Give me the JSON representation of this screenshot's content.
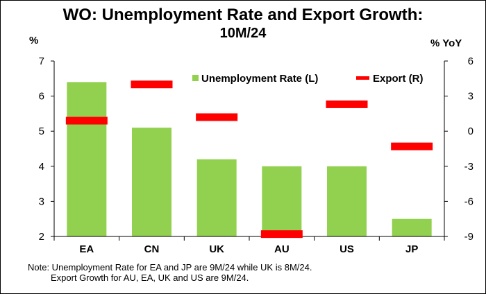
{
  "chart_data": {
    "type": "bar",
    "title": "WO: Unemployment Rate and Export Growth:",
    "subtitle": "10M/24",
    "categories": [
      "EA",
      "CN",
      "UK",
      "AU",
      "US",
      "JP"
    ],
    "series": [
      {
        "name": "Unemployment Rate (L)",
        "type": "bar",
        "axis": "left",
        "color": "#92D050",
        "values": [
          6.4,
          5.1,
          4.2,
          4.0,
          4.0,
          2.5
        ]
      },
      {
        "name": "Export (R)",
        "type": "marker",
        "axis": "right",
        "color": "#FF0000",
        "values": [
          0.9,
          4.0,
          1.2,
          -8.8,
          2.3,
          -1.3
        ]
      }
    ],
    "ylabel_left": "%",
    "ylabel_right": "% YoY",
    "ylim_left": [
      2,
      7
    ],
    "ylim_right": [
      -9,
      6
    ],
    "yticks_left": [
      "2",
      "3",
      "4",
      "5",
      "6",
      "7"
    ],
    "yticks_right": [
      "-9",
      "-6",
      "-3",
      "0",
      "3",
      "6"
    ],
    "legend_position": "top-right",
    "grid": false
  },
  "note": {
    "line1": "Note: Unemployment Rate for EA and JP are 9M/24 while UK is 8M/24.",
    "line2": "Export Growth for AU, EA, UK and US are 9M/24."
  }
}
